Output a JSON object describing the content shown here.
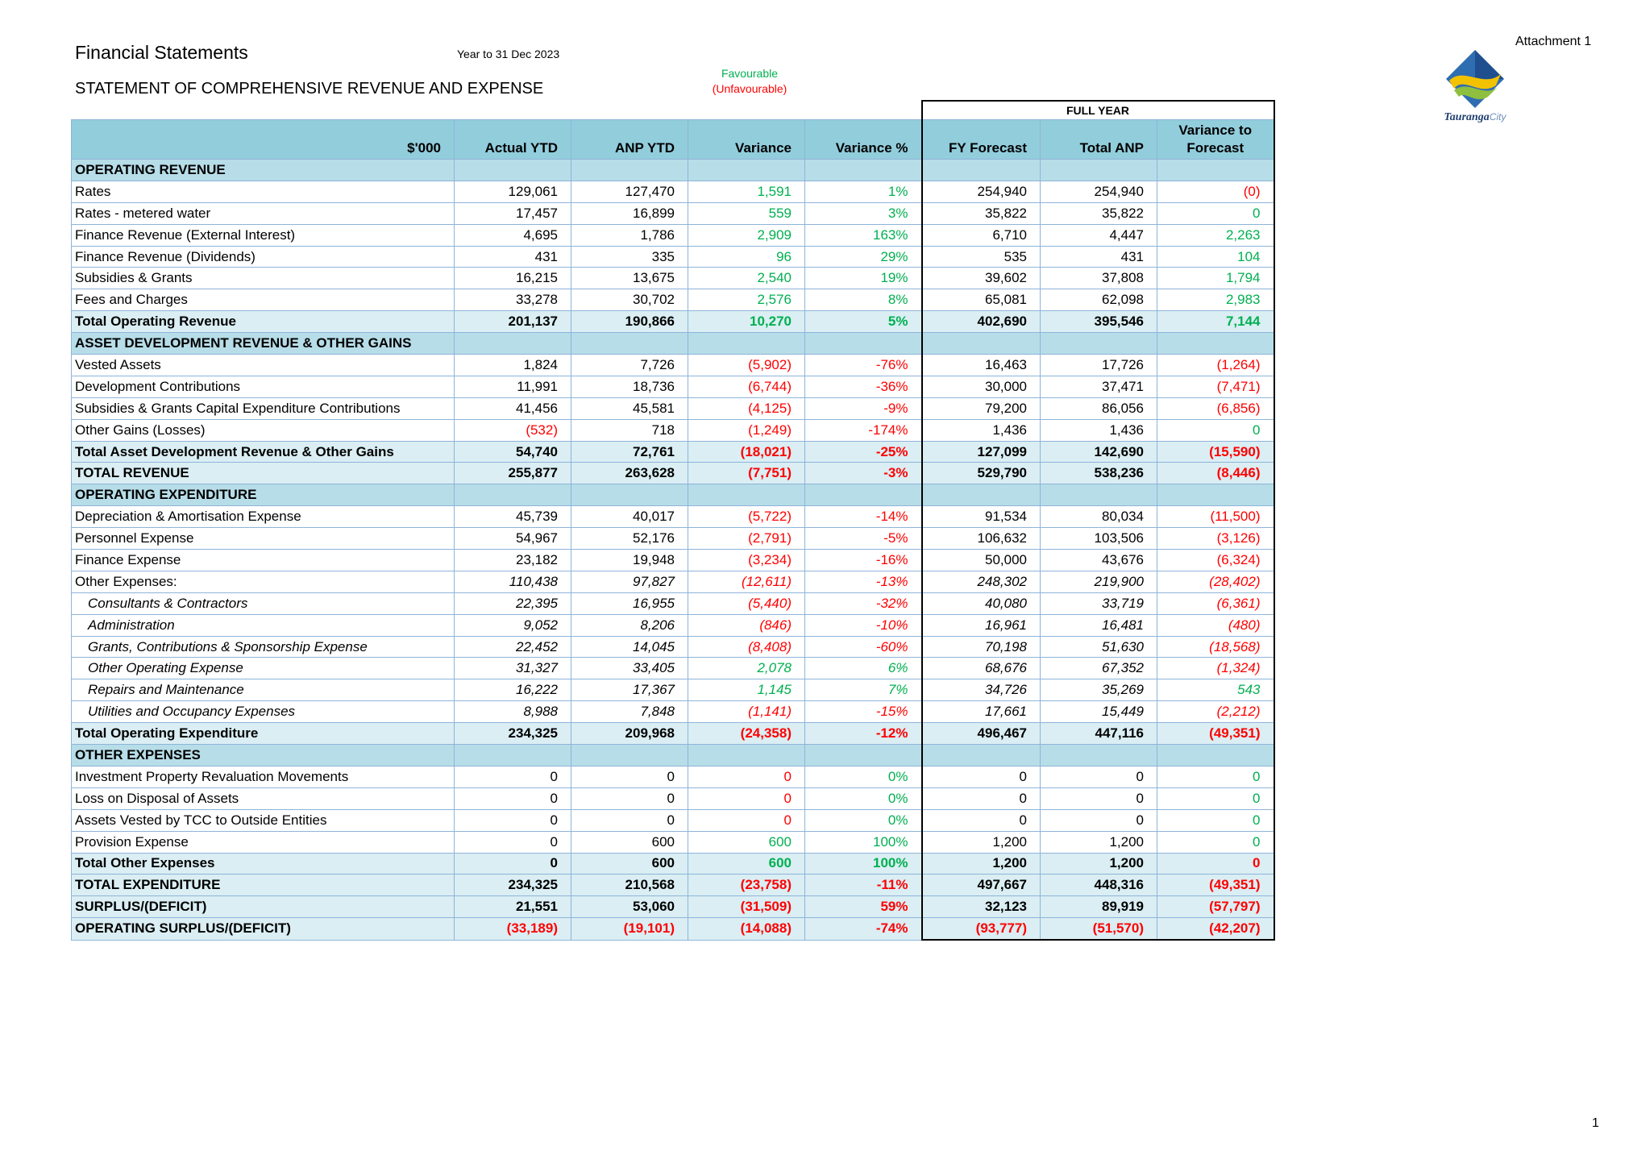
{
  "header": {
    "title": "Financial Statements",
    "period": "Year to 31 Dec 2023",
    "subtitle": "STATEMENT OF COMPREHENSIVE REVENUE AND EXPENSE",
    "favourable": "Favourable",
    "unfavourable": "(Unfavourable)",
    "attachment": "Attachment 1",
    "logo_text": "Tauranga City",
    "page_number": "1"
  },
  "colors": {
    "favourable": "#00b050",
    "unfavourable": "#ff0000",
    "header_bg": "#92cddc",
    "section_bg": "#b7dde8",
    "total_bg": "#daeef3"
  },
  "table": {
    "full_year_label": "FULL YEAR",
    "columns": [
      "$'000",
      "Actual YTD",
      "ANP YTD",
      "Variance",
      "Variance %",
      "FY Forecast",
      "Total ANP",
      "Variance to Forecast"
    ],
    "rows": [
      {
        "type": "section",
        "label": "OPERATING REVENUE"
      },
      {
        "type": "row",
        "label": "Rates",
        "v": [
          "129,061",
          "127,470",
          "1,591",
          "1%",
          "254,940",
          "254,940",
          "(0)"
        ],
        "c": [
          "",
          "",
          "g",
          "g",
          "",
          "",
          "r"
        ]
      },
      {
        "type": "row",
        "label": "Rates - metered water",
        "v": [
          "17,457",
          "16,899",
          "559",
          "3%",
          "35,822",
          "35,822",
          "0"
        ],
        "c": [
          "",
          "",
          "g",
          "g",
          "",
          "",
          "g"
        ]
      },
      {
        "type": "row",
        "label": "Finance Revenue (External Interest)",
        "v": [
          "4,695",
          "1,786",
          "2,909",
          "163%",
          "6,710",
          "4,447",
          "2,263"
        ],
        "c": [
          "",
          "",
          "g",
          "g",
          "",
          "",
          "g"
        ]
      },
      {
        "type": "row",
        "label": "Finance Revenue (Dividends)",
        "v": [
          "431",
          "335",
          "96",
          "29%",
          "535",
          "431",
          "104"
        ],
        "c": [
          "",
          "",
          "g",
          "g",
          "",
          "",
          "g"
        ]
      },
      {
        "type": "row",
        "label": "Subsidies & Grants",
        "v": [
          "16,215",
          "13,675",
          "2,540",
          "19%",
          "39,602",
          "37,808",
          "1,794"
        ],
        "c": [
          "",
          "",
          "g",
          "g",
          "",
          "",
          "g"
        ]
      },
      {
        "type": "row",
        "label": "Fees and Charges",
        "v": [
          "33,278",
          "30,702",
          "2,576",
          "8%",
          "65,081",
          "62,098",
          "2,983"
        ],
        "c": [
          "",
          "",
          "g",
          "g",
          "",
          "",
          "g"
        ]
      },
      {
        "type": "total",
        "label": "Total Operating Revenue",
        "v": [
          "201,137",
          "190,866",
          "10,270",
          "5%",
          "402,690",
          "395,546",
          "7,144"
        ],
        "c": [
          "",
          "",
          "g",
          "g",
          "",
          "",
          "g"
        ]
      },
      {
        "type": "section",
        "label": "ASSET DEVELOPMENT REVENUE & OTHER GAINS"
      },
      {
        "type": "row",
        "label": "Vested Assets",
        "v": [
          "1,824",
          "7,726",
          "(5,902)",
          "-76%",
          "16,463",
          "17,726",
          "(1,264)"
        ],
        "c": [
          "",
          "",
          "r",
          "r",
          "",
          "",
          "r"
        ]
      },
      {
        "type": "row",
        "label": "Development Contributions",
        "v": [
          "11,991",
          "18,736",
          "(6,744)",
          "-36%",
          "30,000",
          "37,471",
          "(7,471)"
        ],
        "c": [
          "",
          "",
          "r",
          "r",
          "",
          "",
          "r"
        ]
      },
      {
        "type": "row",
        "label": "Subsidies & Grants Capital Expenditure Contributions",
        "v": [
          "41,456",
          "45,581",
          "(4,125)",
          "-9%",
          "79,200",
          "86,056",
          "(6,856)"
        ],
        "c": [
          "",
          "",
          "r",
          "r",
          "",
          "",
          "r"
        ]
      },
      {
        "type": "row",
        "label": "Other Gains (Losses)",
        "v": [
          "(532)",
          "718",
          "(1,249)",
          "-174%",
          "1,436",
          "1,436",
          "0"
        ],
        "c": [
          "r",
          "",
          "r",
          "r",
          "",
          "",
          "g"
        ]
      },
      {
        "type": "total",
        "label": "Total Asset Development Revenue & Other Gains",
        "v": [
          "54,740",
          "72,761",
          "(18,021)",
          "-25%",
          "127,099",
          "142,690",
          "(15,590)"
        ],
        "c": [
          "",
          "",
          "r",
          "r",
          "",
          "",
          "r"
        ]
      },
      {
        "type": "total",
        "label": "TOTAL REVENUE",
        "v": [
          "255,877",
          "263,628",
          "(7,751)",
          "-3%",
          "529,790",
          "538,236",
          "(8,446)"
        ],
        "c": [
          "",
          "",
          "r",
          "r",
          "",
          "",
          "r"
        ]
      },
      {
        "type": "section",
        "label": "OPERATING EXPENDITURE"
      },
      {
        "type": "row",
        "label": "Depreciation & Amortisation Expense",
        "v": [
          "45,739",
          "40,017",
          "(5,722)",
          "-14%",
          "91,534",
          "80,034",
          "(11,500)"
        ],
        "c": [
          "",
          "",
          "r",
          "r",
          "",
          "",
          "r"
        ]
      },
      {
        "type": "row",
        "label": "Personnel Expense",
        "v": [
          "54,967",
          "52,176",
          "(2,791)",
          "-5%",
          "106,632",
          "103,506",
          "(3,126)"
        ],
        "c": [
          "",
          "",
          "r",
          "r",
          "",
          "",
          "r"
        ]
      },
      {
        "type": "row",
        "label": "Finance Expense",
        "v": [
          "23,182",
          "19,948",
          "(3,234)",
          "-16%",
          "50,000",
          "43,676",
          "(6,324)"
        ],
        "c": [
          "",
          "",
          "r",
          "r",
          "",
          "",
          "r"
        ]
      },
      {
        "type": "ital",
        "label": "Other Expenses:",
        "v": [
          "110,438",
          "97,827",
          "(12,611)",
          "-13%",
          "248,302",
          "219,900",
          "(28,402)"
        ],
        "c": [
          "",
          "",
          "r",
          "r",
          "",
          "",
          "r"
        ]
      },
      {
        "type": "sub",
        "label": "Consultants & Contractors",
        "v": [
          "22,395",
          "16,955",
          "(5,440)",
          "-32%",
          "40,080",
          "33,719",
          "(6,361)"
        ],
        "c": [
          "",
          "",
          "r",
          "r",
          "",
          "",
          "r"
        ]
      },
      {
        "type": "sub",
        "label": "Administration",
        "v": [
          "9,052",
          "8,206",
          "(846)",
          "-10%",
          "16,961",
          "16,481",
          "(480)"
        ],
        "c": [
          "",
          "",
          "r",
          "r",
          "",
          "",
          "r"
        ]
      },
      {
        "type": "sub",
        "label": "Grants, Contributions & Sponsorship Expense",
        "v": [
          "22,452",
          "14,045",
          "(8,408)",
          "-60%",
          "70,198",
          "51,630",
          "(18,568)"
        ],
        "c": [
          "",
          "",
          "r",
          "r",
          "",
          "",
          "r"
        ]
      },
      {
        "type": "sub",
        "label": "Other Operating Expense",
        "v": [
          "31,327",
          "33,405",
          "2,078",
          "6%",
          "68,676",
          "67,352",
          "(1,324)"
        ],
        "c": [
          "",
          "",
          "g",
          "g",
          "",
          "",
          "r"
        ]
      },
      {
        "type": "sub",
        "label": "Repairs and Maintenance",
        "v": [
          "16,222",
          "17,367",
          "1,145",
          "7%",
          "34,726",
          "35,269",
          "543"
        ],
        "c": [
          "",
          "",
          "g",
          "g",
          "",
          "",
          "g"
        ]
      },
      {
        "type": "sub",
        "label": "Utilities and Occupancy Expenses",
        "v": [
          "8,988",
          "7,848",
          "(1,141)",
          "-15%",
          "17,661",
          "15,449",
          "(2,212)"
        ],
        "c": [
          "",
          "",
          "r",
          "r",
          "",
          "",
          "r"
        ]
      },
      {
        "type": "total",
        "label": "Total Operating Expenditure",
        "v": [
          "234,325",
          "209,968",
          "(24,358)",
          "-12%",
          "496,467",
          "447,116",
          "(49,351)"
        ],
        "c": [
          "",
          "",
          "r",
          "r",
          "",
          "",
          "r"
        ]
      },
      {
        "type": "section",
        "label": "OTHER EXPENSES"
      },
      {
        "type": "row",
        "label": "Investment Property Revaluation Movements",
        "v": [
          "0",
          "0",
          "0",
          "0%",
          "0",
          "0",
          "0"
        ],
        "c": [
          "",
          "",
          "r",
          "g",
          "",
          "",
          "g"
        ]
      },
      {
        "type": "row",
        "label": "Loss on Disposal of Assets",
        "v": [
          "0",
          "0",
          "0",
          "0%",
          "0",
          "0",
          "0"
        ],
        "c": [
          "",
          "",
          "r",
          "g",
          "",
          "",
          "g"
        ]
      },
      {
        "type": "row",
        "label": "Assets Vested by TCC to Outside Entities",
        "v": [
          "0",
          "0",
          "0",
          "0%",
          "0",
          "0",
          "0"
        ],
        "c": [
          "",
          "",
          "r",
          "g",
          "",
          "",
          "g"
        ]
      },
      {
        "type": "row",
        "label": "Provision Expense",
        "v": [
          "0",
          "600",
          "600",
          "100%",
          "1,200",
          "1,200",
          "0"
        ],
        "c": [
          "",
          "",
          "g",
          "g",
          "",
          "",
          "g"
        ]
      },
      {
        "type": "total",
        "label": "Total Other Expenses",
        "v": [
          "0",
          "600",
          "600",
          "100%",
          "1,200",
          "1,200",
          "0"
        ],
        "c": [
          "",
          "",
          "g",
          "g",
          "",
          "",
          "r"
        ]
      },
      {
        "type": "total",
        "label": "TOTAL EXPENDITURE",
        "v": [
          "234,325",
          "210,568",
          "(23,758)",
          "-11%",
          "497,667",
          "448,316",
          "(49,351)"
        ],
        "c": [
          "",
          "",
          "r",
          "r",
          "",
          "",
          "r"
        ]
      },
      {
        "type": "total",
        "label": "SURPLUS/(DEFICIT)",
        "v": [
          "21,551",
          "53,060",
          "(31,509)",
          "59%",
          "32,123",
          "89,919",
          "(57,797)"
        ],
        "c": [
          "",
          "",
          "r",
          "r",
          "",
          "",
          "r"
        ]
      },
      {
        "type": "total",
        "label": "OPERATING SURPLUS/(DEFICIT)",
        "v": [
          "(33,189)",
          "(19,101)",
          "(14,088)",
          "-74%",
          "(93,777)",
          "(51,570)",
          "(42,207)"
        ],
        "c": [
          "r",
          "r",
          "r",
          "r",
          "r",
          "r",
          "r"
        ]
      }
    ]
  }
}
